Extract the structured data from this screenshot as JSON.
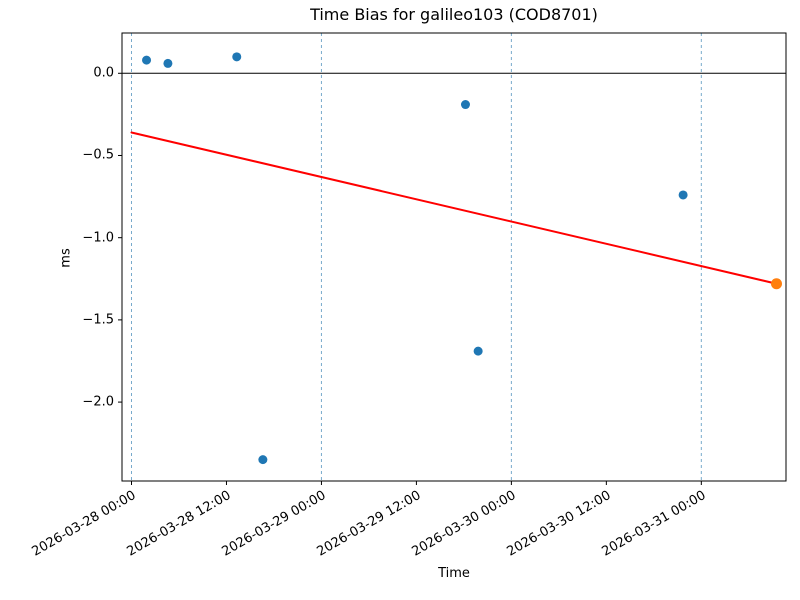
{
  "chart_data": {
    "type": "scatter",
    "title": "Time Bias for galileo103 (COD8701)",
    "xlabel": "Time",
    "ylabel": "ms",
    "x_axis_kind": "datetime",
    "x_origin": "2026-03-28 00:00",
    "x_unit": "hours since 2026-03-28 00:00",
    "xlim": [
      -1.2,
      82.7
    ],
    "ylim": [
      -2.48,
      0.245
    ],
    "grid": "vertical dashed lines at day boundaries only",
    "legend": "none",
    "x_ticks": [
      {
        "hours": 0,
        "label": "2026-03-28 00:00"
      },
      {
        "hours": 12,
        "label": "2026-03-28 12:00"
      },
      {
        "hours": 24,
        "label": "2026-03-29 00:00"
      },
      {
        "hours": 36,
        "label": "2026-03-29 12:00"
      },
      {
        "hours": 48,
        "label": "2026-03-30 00:00"
      },
      {
        "hours": 60,
        "label": "2026-03-30 12:00"
      },
      {
        "hours": 72,
        "label": "2026-03-31 00:00"
      }
    ],
    "y_ticks": [
      {
        "ms": 0.0,
        "label": "0.0"
      },
      {
        "ms": -0.5,
        "label": "−0.5"
      },
      {
        "ms": -1.0,
        "label": "−1.0"
      },
      {
        "ms": -1.5,
        "label": "−1.5"
      },
      {
        "ms": -2.0,
        "label": "−2.0"
      }
    ],
    "day_gridlines_hours": [
      0,
      24,
      48,
      72
    ],
    "series": [
      {
        "name": "time-bias-observations",
        "color": "#1f77b4",
        "marker_radius": 4.5,
        "points": [
          {
            "hours": 1.9,
            "ms": 0.08,
            "time": "2026-03-28 01:55"
          },
          {
            "hours": 4.6,
            "ms": 0.06,
            "time": "2026-03-28 04:35"
          },
          {
            "hours": 13.3,
            "ms": 0.1,
            "time": "2026-03-28 13:20"
          },
          {
            "hours": 16.6,
            "ms": -2.35,
            "time": "2026-03-28 16:35"
          },
          {
            "hours": 42.2,
            "ms": -0.19,
            "time": "2026-03-29 18:15"
          },
          {
            "hours": 43.8,
            "ms": -1.69,
            "time": "2026-03-29 19:45"
          },
          {
            "hours": 69.7,
            "ms": -0.74,
            "time": "2026-03-30 21:40"
          }
        ]
      },
      {
        "name": "predicted-point",
        "color": "#ff7f0e",
        "marker_radius": 5.5,
        "points": [
          {
            "hours": 81.5,
            "ms": -1.28,
            "time": "2026-03-31 09:30"
          }
        ]
      }
    ],
    "trend_line": {
      "color": "#ff0000",
      "width": 2,
      "start": {
        "hours": 0,
        "ms": -0.36
      },
      "end": {
        "hours": 81.5,
        "ms": -1.28
      }
    },
    "zero_line": {
      "ms": 0.0,
      "color": "#000000"
    },
    "colors": {
      "grid": "#77aacc",
      "spine": "#000000",
      "tick": "#000000",
      "text": "#000000",
      "background": "#ffffff"
    }
  }
}
